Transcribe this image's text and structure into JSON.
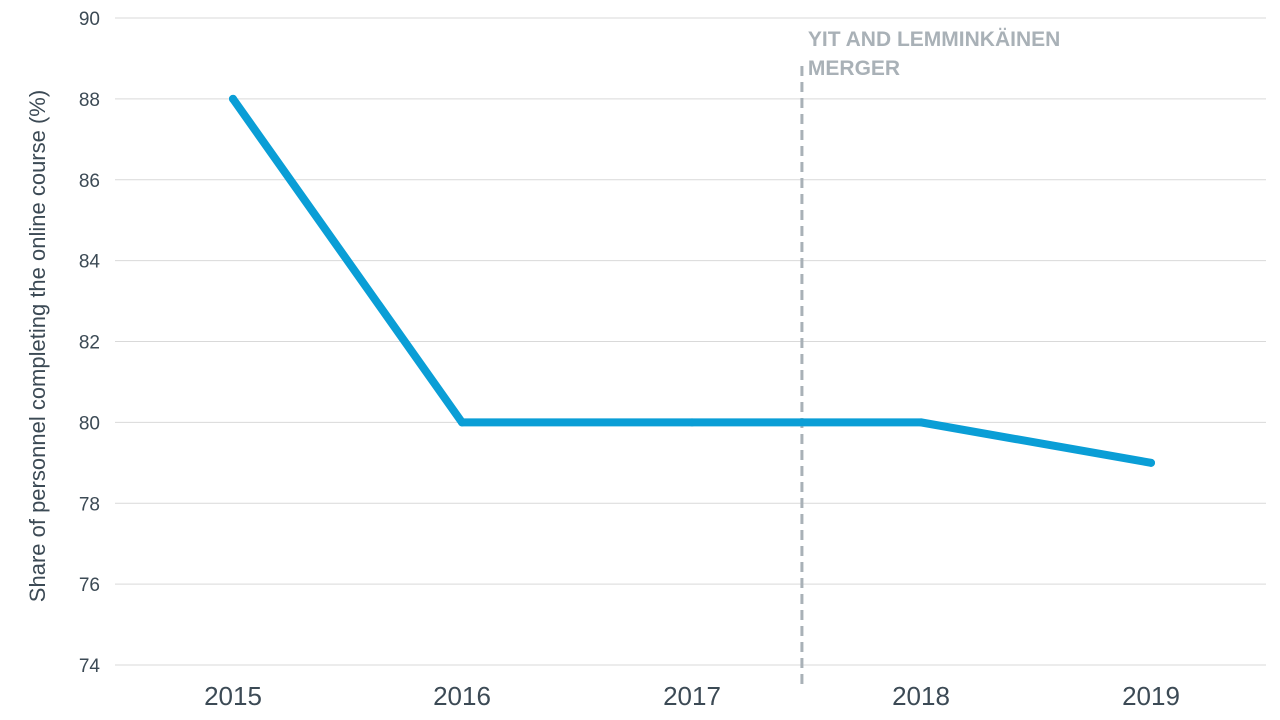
{
  "chart_data": {
    "type": "line",
    "title": "",
    "xlabel": "",
    "ylabel": "Share of personnel completing the online course (%)",
    "categories": [
      "2015",
      "2016",
      "2017",
      "2018",
      "2019"
    ],
    "series": [
      {
        "values": [
          88,
          80,
          80,
          80,
          79
        ],
        "color": "#0a9ed6"
      }
    ],
    "ylim": [
      74,
      90
    ],
    "yticks": [
      90,
      88,
      86,
      84,
      82,
      80,
      78,
      76,
      74
    ],
    "grid": true,
    "legend": "none",
    "annotation": {
      "lines": [
        "YIT AND LEMMINKÄINEN",
        "MERGER"
      ],
      "x_between": [
        "2017",
        "2018"
      ],
      "style": "dashed-vertical-line",
      "color": "#a9b1b7"
    },
    "colors": {
      "line": "#0a9ed6",
      "grid": "#d9d9d9",
      "text": "#3c4a55",
      "annotation": "#a9b1b7"
    }
  }
}
